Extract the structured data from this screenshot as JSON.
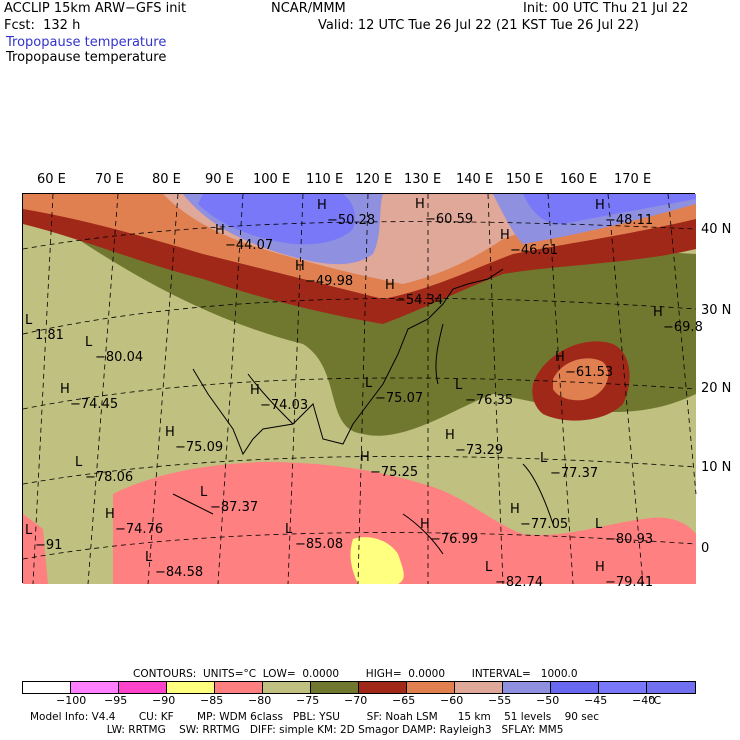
{
  "header": {
    "model": "ACCLIP 15km ARW−GFS init",
    "fcst": "Fcst:  132 h",
    "org": "NCAR/MMM",
    "init": "Init: 00 UTC Thu 21 Jul 22",
    "valid": "Valid: 12 UTC Tue 26 Jul 22 (21 KST Tue 26 Jul 22)",
    "field_filled": "Tropopause temperature",
    "field_contour": "Tropopause temperature"
  },
  "lon_labels": [
    "60 E",
    "70 E",
    "80 E",
    "90 E",
    "100 E",
    "110 E",
    "120 E",
    "130 E",
    "140 E",
    "150 E",
    "160 E",
    "170 E"
  ],
  "lat_labels": [
    "40 N",
    "30 N",
    "20 N",
    "10 N",
    "0"
  ],
  "map": {
    "colors": {
      "m95": "#ff80ff",
      "m90": "#ff44cc",
      "m85": "#ffff80",
      "m80": "#ff8080",
      "m75": "#c0c080",
      "m70": "#707830",
      "m65": "#a02818",
      "m60": "#e08050",
      "m55": "#e0a898",
      "m50": "#9090e0",
      "m45": "#6868f0",
      "m40": "#7878f8"
    },
    "markers": [
      {
        "t": "H",
        "v": "−50.28"
      },
      {
        "t": "H",
        "v": "−60.59"
      },
      {
        "t": "H",
        "v": "−48.11"
      },
      {
        "t": "H",
        "v": "−44.07"
      },
      {
        "t": "H",
        "v": "−46.61"
      },
      {
        "t": "H",
        "v": "−49.98"
      },
      {
        "t": "H",
        "v": "−54.34"
      },
      {
        "t": "L",
        "v": "−80.04"
      },
      {
        "t": "L",
        "v": "1.81"
      },
      {
        "t": "H",
        "v": "−74.45"
      },
      {
        "t": "H",
        "v": "−74.03"
      },
      {
        "t": "L",
        "v": "−75.07"
      },
      {
        "t": "L",
        "v": "−76.35"
      },
      {
        "t": "H",
        "v": "−69.8"
      },
      {
        "t": "H",
        "v": "−61.53"
      },
      {
        "t": "H",
        "v": "−75.09"
      },
      {
        "t": "H",
        "v": "−73.29"
      },
      {
        "t": "L",
        "v": "−77.37"
      },
      {
        "t": "L",
        "v": "−78.06"
      },
      {
        "t": "H",
        "v": "−75.25"
      },
      {
        "t": "H",
        "v": "−74.76"
      },
      {
        "t": "L",
        "v": "−87.37"
      },
      {
        "t": "L",
        "v": "−85.08"
      },
      {
        "t": "H",
        "v": "−76.99"
      },
      {
        "t": "H",
        "v": "−77.05"
      },
      {
        "t": "L",
        "v": "−80.93"
      },
      {
        "t": "L",
        "v": "−84.58"
      },
      {
        "t": "L",
        "v": "−82.74"
      },
      {
        "t": "H",
        "v": "−79.41"
      },
      {
        "t": "L",
        "v": "−91"
      }
    ]
  },
  "colorbar": {
    "colors": [
      "#ffffff",
      "#ff80ff",
      "#ff44cc",
      "#ffff80",
      "#ff8080",
      "#c0c080",
      "#707830",
      "#a02818",
      "#e08050",
      "#e0a898",
      "#9090e0",
      "#6868f0",
      "#7878f8",
      "#7070f0"
    ],
    "labels": [
      "−100",
      "−95",
      "−90",
      "−85",
      "−80",
      "−75",
      "−70",
      "−65",
      "−60",
      "−55",
      "−50",
      "−45",
      "−40",
      "°C"
    ]
  },
  "footer": {
    "contours": "CONTOURS:  UNITS=°C  LOW=  0.0000        HIGH=  0.0000        INTERVAL=   1000.0",
    "row1": "Model Info: V4.4       CU: KF       MP: WDM 6class   PBL: YSU        SF: Noah LSM      15 km    51 levels    90 sec",
    "row2": "                       LW: RRTMG    SW: RRTMG   DIFF: simple KM: 2D Smagor DAMP: Rayleigh3   SFLAY: MM5"
  }
}
